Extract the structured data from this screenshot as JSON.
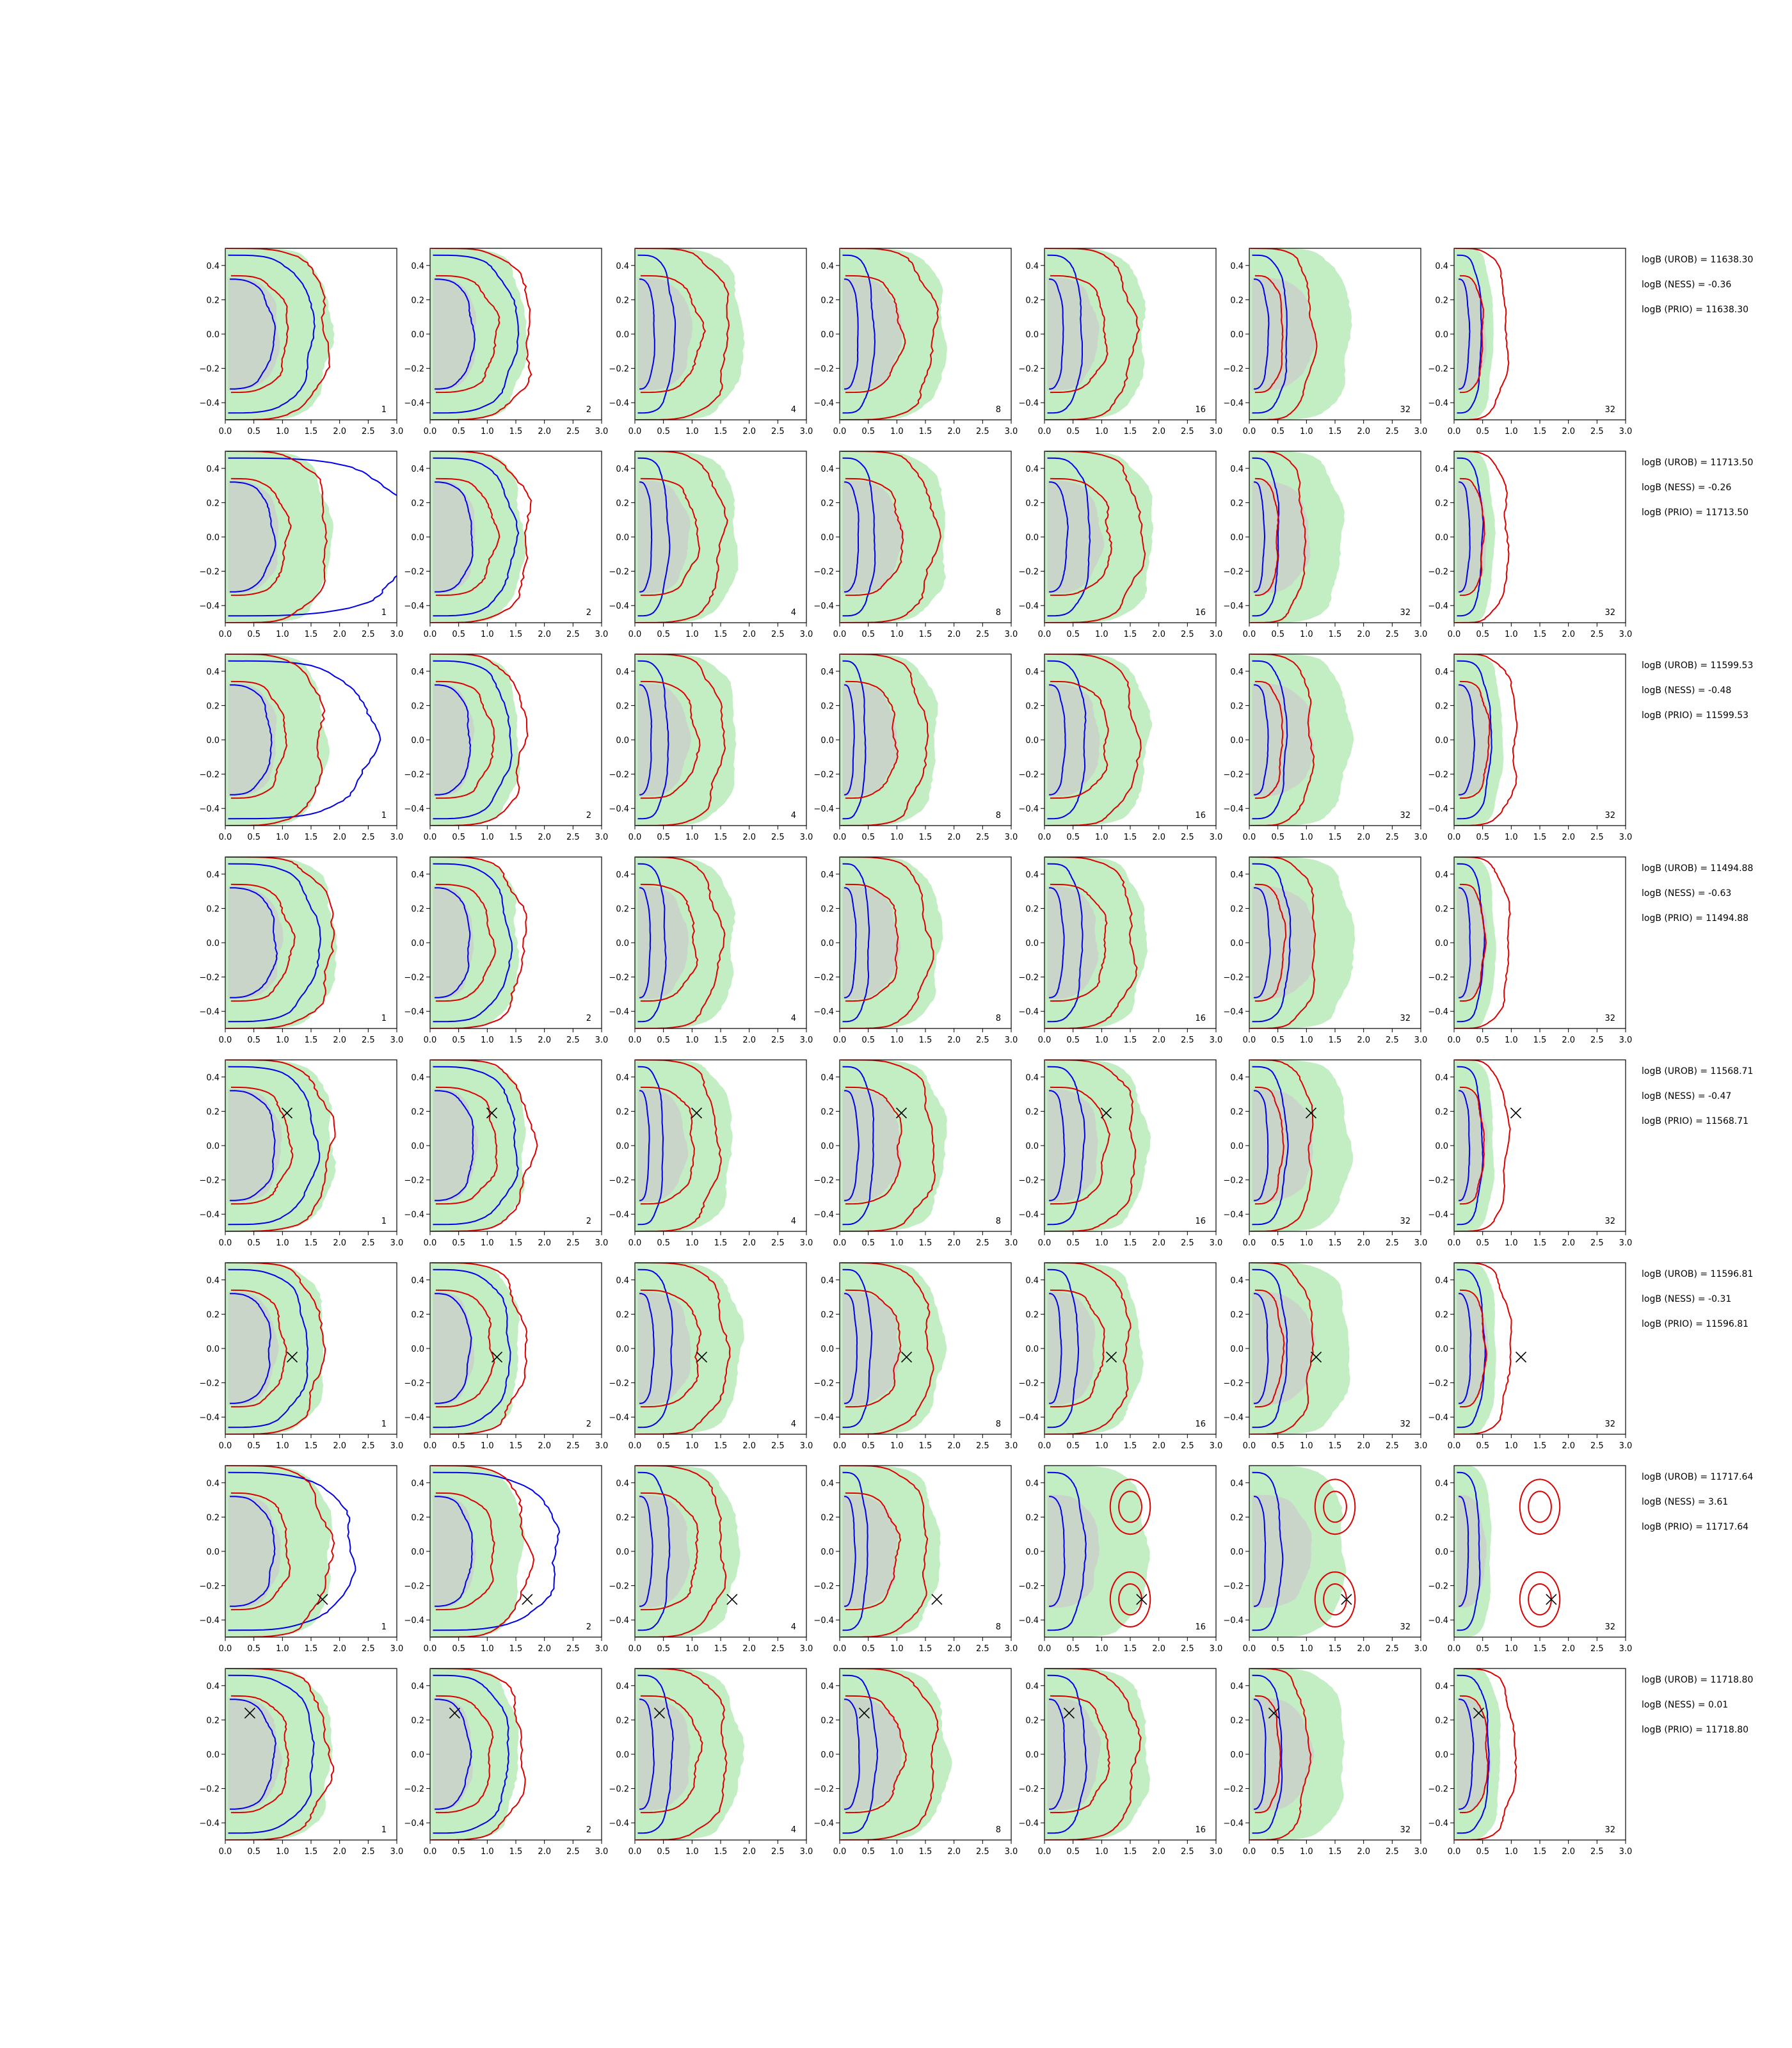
{
  "chart_data": {
    "type": "contour-grid",
    "rows": 8,
    "columns": 7,
    "column_labels": [
      "1",
      "2",
      "4",
      "8",
      "16",
      "32",
      "32"
    ],
    "xlim": [
      0.0,
      3.0
    ],
    "ylim": [
      -0.5,
      0.5
    ],
    "x_ticks": [
      "0.0",
      "0.5",
      "1.0",
      "1.5",
      "2.0",
      "2.5",
      "3.0"
    ],
    "y_ticks": [
      "−0.4",
      "−0.2",
      "0.0",
      "0.2",
      "0.4"
    ],
    "x_tick_values": [
      0.0,
      0.5,
      1.0,
      1.5,
      2.0,
      2.5,
      3.0
    ],
    "y_tick_values": [
      -0.4,
      -0.2,
      0.0,
      0.2,
      0.4
    ],
    "colors": {
      "green_fill": "#c3eec3",
      "grey_fill": "#cccccc",
      "blue_contour": "#0000ee",
      "red_contour": "#dd0000",
      "marker": "#000000"
    },
    "rows_data": [
      {
        "marker": null,
        "logB": [
          "logB (UROB) = 11638.30",
          "logB (NESS) = -0.36",
          "logB (PRIO) = 11638.30"
        ]
      },
      {
        "marker": null,
        "logB": [
          "logB (UROB) = 11713.50",
          "logB (NESS) = -0.26",
          "logB (PRIO) = 11713.50"
        ]
      },
      {
        "marker": null,
        "logB": [
          "logB (UROB) = 11599.53",
          "logB (NESS) = -0.48",
          "logB (PRIO) = 11599.53"
        ]
      },
      {
        "marker": null,
        "logB": [
          "logB (UROB) = 11494.88",
          "logB (NESS) = -0.63",
          "logB (PRIO) = 11494.88"
        ]
      },
      {
        "marker": [
          1.08,
          0.19
        ],
        "logB": [
          "logB (UROB) = 11568.71",
          "logB (NESS) = -0.47",
          "logB (PRIO) = 11568.71"
        ]
      },
      {
        "marker": [
          1.17,
          -0.05
        ],
        "logB": [
          "logB (UROB) = 11596.81",
          "logB (NESS) = -0.31",
          "logB (PRIO) = 11596.81"
        ]
      },
      {
        "marker": [
          1.7,
          -0.28
        ],
        "logB": [
          "logB (UROB) = 11717.64",
          "logB (NESS) = 3.61",
          "logB (PRIO) = 11717.64"
        ]
      },
      {
        "marker": [
          0.43,
          0.24
        ],
        "logB": [
          "logB (UROB) = 11718.80",
          "logB (NESS) = 0.01",
          "logB (PRIO) = 11718.80"
        ]
      }
    ]
  }
}
